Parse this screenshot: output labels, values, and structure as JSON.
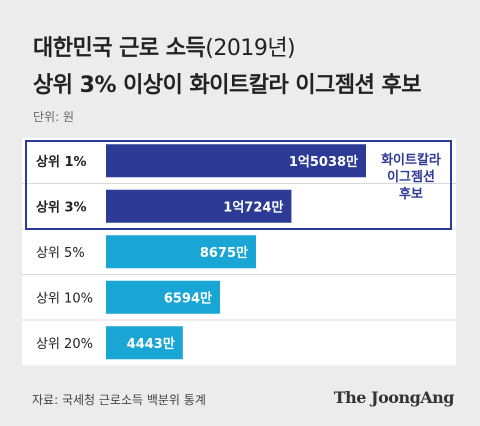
{
  "title": {
    "line1_main": "대한민국 근로 소득",
    "line1_paren": "(2019년)",
    "line2": "상위 3% 이상이 화이트칼라 이그젬션 후보"
  },
  "unit_label": "단위: 원",
  "annotation": [
    "화이트칼라",
    "이그젬션",
    "후보"
  ],
  "source": "자료: 국세청 근로소득 백분위 통계",
  "brand": "The JoongAng",
  "colors": {
    "highlight": "#2d3b96",
    "bar": "#1aa6d4",
    "background": "#ececec"
  },
  "chart_data": {
    "type": "bar",
    "orientation": "horizontal",
    "categories": [
      "상위 1%",
      "상위 3%",
      "상위 5%",
      "상위 10%",
      "상위 20%"
    ],
    "values": [
      150380000,
      107240000,
      86750000,
      65940000,
      44430000
    ],
    "value_labels": [
      "1억5038만",
      "1억724만",
      "8675만",
      "6594만",
      "4443만"
    ],
    "highlighted": [
      true,
      true,
      false,
      false,
      false
    ],
    "unit": "원"
  }
}
